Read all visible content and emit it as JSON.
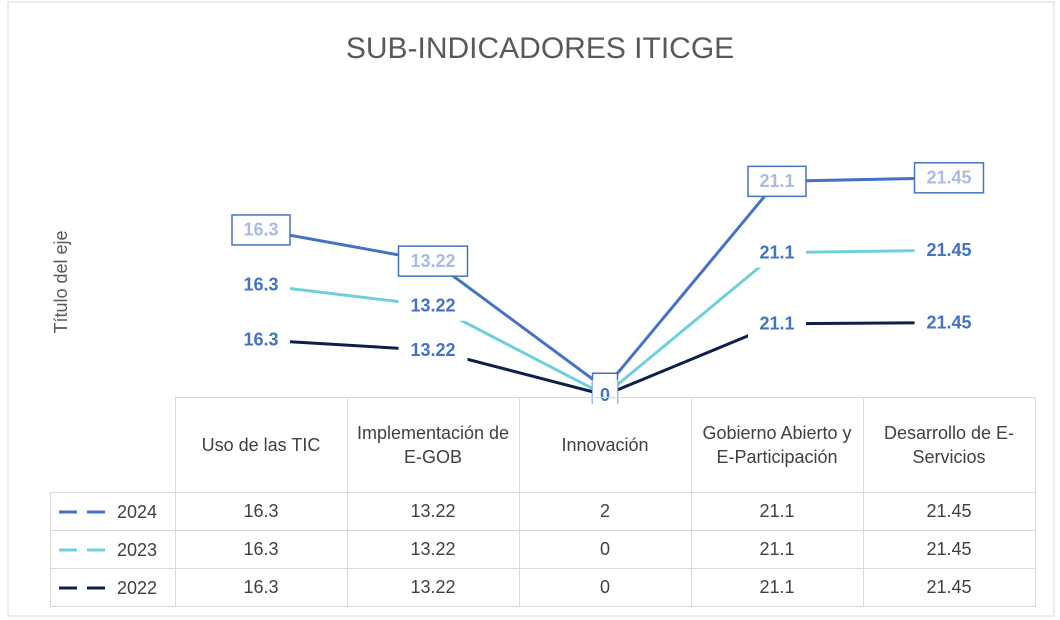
{
  "chart_data": {
    "type": "stacked-line",
    "title": "SUB-INDICADORES ITICGE",
    "y_label": "Título del eje",
    "categories": [
      "Uso de las TIC",
      "Implementación de E-GOB",
      "Innovación",
      "Gobierno Abierto y E-Participación",
      "Desarrollo de E-Servicios"
    ],
    "series": [
      {
        "name": "2024",
        "color": "#4472c4",
        "label_color": "#a9bce0",
        "boxed_labels": true,
        "values": [
          16.3,
          13.22,
          2,
          21.1,
          21.45
        ]
      },
      {
        "name": "2023",
        "color": "#6fd0d9",
        "label_color": "#4472c4",
        "boxed_labels": false,
        "values": [
          16.3,
          13.22,
          0,
          21.1,
          21.45
        ]
      },
      {
        "name": "2022",
        "color": "#0c1f4d",
        "label_color": "#4472c4",
        "boxed_labels": false,
        "values": [
          16.3,
          13.22,
          0,
          21.1,
          21.45
        ]
      }
    ],
    "ylim": [
      0,
      80
    ],
    "grid": false,
    "legend": "table"
  }
}
